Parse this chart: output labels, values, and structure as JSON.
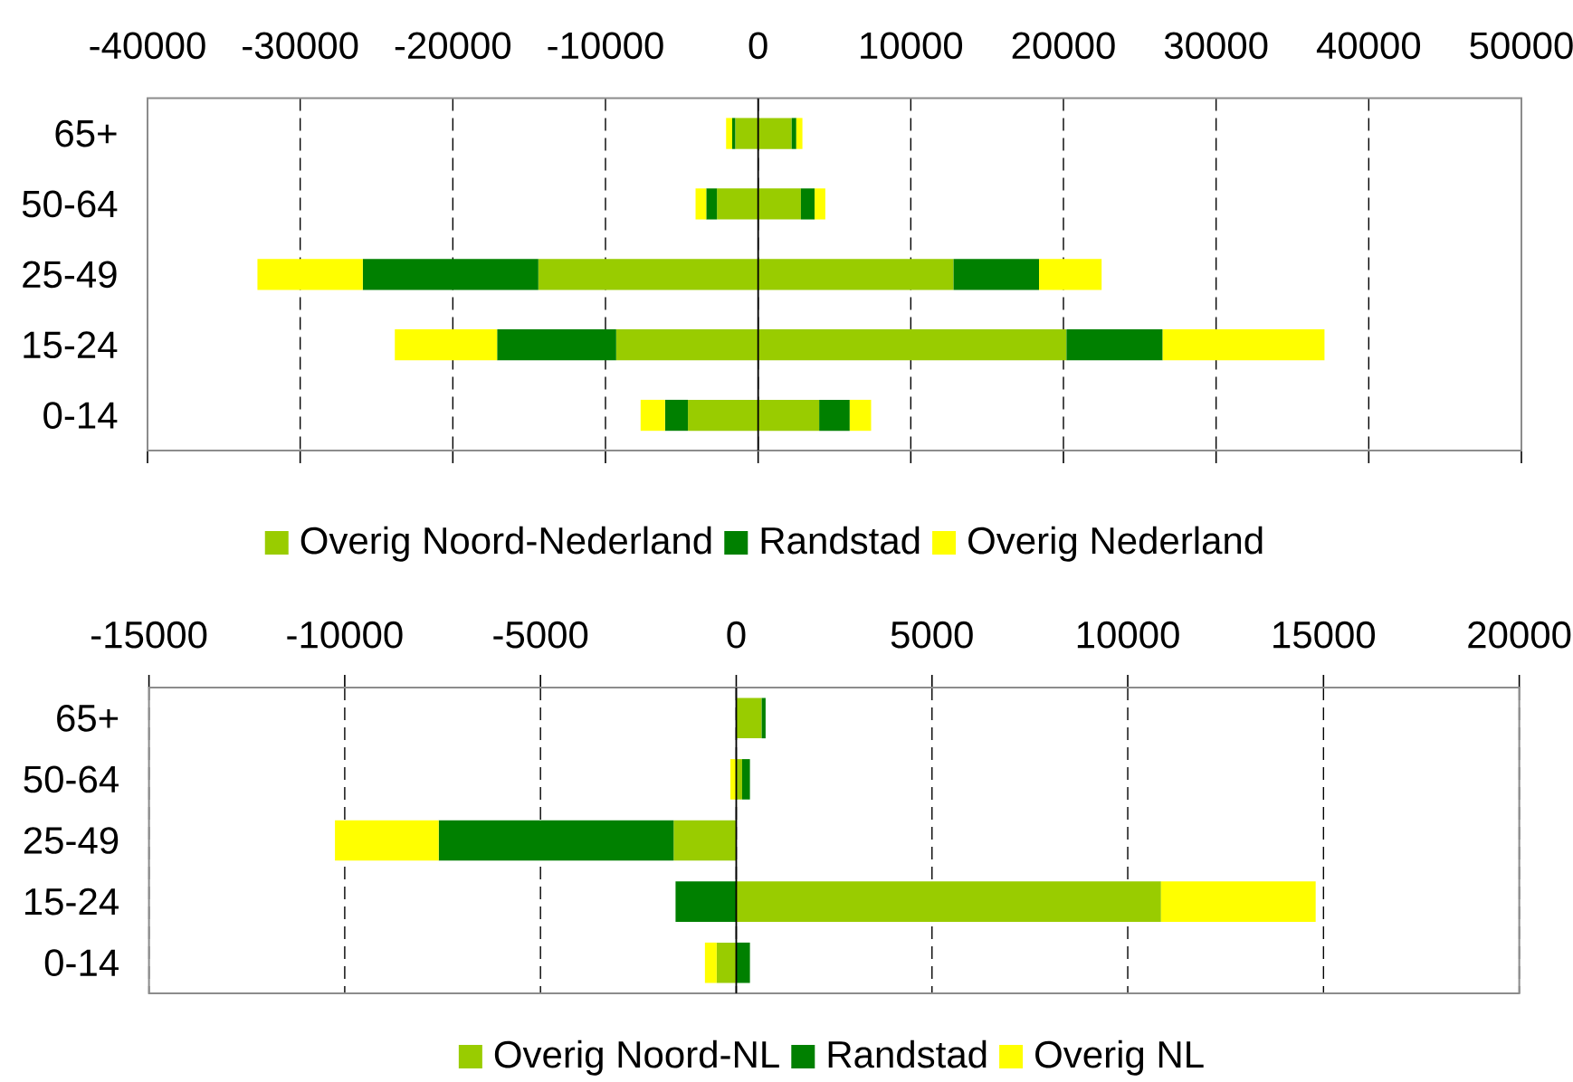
{
  "chart_data": [
    {
      "type": "bar",
      "orientation": "horizontal",
      "stacked": true,
      "categories": [
        "65+",
        "50-64",
        "25-49",
        "15-24",
        "0-14"
      ],
      "series": [
        {
          "name": "Overig Noord-Nederland",
          "color": "#99cc00",
          "values": [
            2200,
            2800,
            12800,
            20200,
            4000
          ]
        },
        {
          "name": "Randstad",
          "color": "#008000",
          "values": [
            300,
            900,
            5600,
            6300,
            2000
          ]
        },
        {
          "name": "Overig Nederland",
          "color": "#ffff00",
          "values": [
            400,
            700,
            4100,
            10600,
            1400
          ]
        },
        {
          "color": "#99cc00",
          "values": [
            -1500,
            -2700,
            -14400,
            -9300,
            -4600
          ]
        },
        {
          "color": "#008000",
          "values": [
            -200,
            -700,
            -11500,
            -7800,
            -1500
          ]
        },
        {
          "color": "#ffff00",
          "values": [
            -400,
            -700,
            -6900,
            -6700,
            -1600
          ]
        }
      ],
      "xlim": [
        -40000,
        50000
      ],
      "xticks": [
        -40000,
        -30000,
        -20000,
        -10000,
        0,
        10000,
        20000,
        30000,
        40000,
        50000
      ],
      "grid": "x",
      "legend": "bottom"
    },
    {
      "type": "bar",
      "orientation": "horizontal",
      "stacked": true,
      "categories": [
        "65+",
        "50-64",
        "25-49",
        "15-24",
        "0-14"
      ],
      "series": [
        {
          "name": "Overig Noord-NL",
          "color": "#99cc00",
          "values": [
            650,
            150,
            null,
            10850,
            null
          ]
        },
        {
          "name": "Randstad",
          "color": "#008000",
          "values": [
            100,
            200,
            null,
            null,
            350
          ]
        },
        {
          "name": "Overig NL",
          "color": "#ffff00",
          "values": [
            null,
            null,
            null,
            3950,
            null
          ]
        },
        {
          "color": "#99cc00",
          "values": [
            null,
            null,
            -1600,
            null,
            -500
          ]
        },
        {
          "color": "#008000",
          "values": [
            null,
            null,
            -6000,
            -1550,
            null
          ]
        },
        {
          "color": "#ffff00",
          "values": [
            null,
            -150,
            -2650,
            null,
            -300
          ]
        }
      ],
      "xlim": [
        -15000,
        20000
      ],
      "xticks": [
        -15000,
        -10000,
        -5000,
        0,
        5000,
        10000,
        15000,
        20000
      ],
      "grid": "x",
      "legend": "bottom"
    }
  ]
}
